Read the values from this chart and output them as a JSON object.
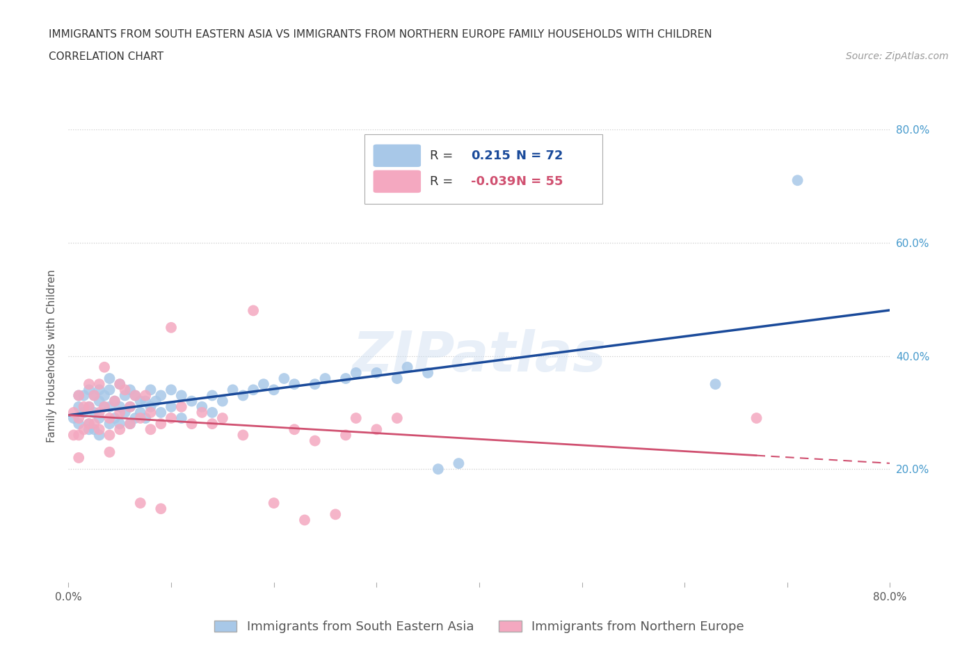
{
  "title_line1": "IMMIGRANTS FROM SOUTH EASTERN ASIA VS IMMIGRANTS FROM NORTHERN EUROPE FAMILY HOUSEHOLDS WITH CHILDREN",
  "title_line2": "CORRELATION CHART",
  "source": "Source: ZipAtlas.com",
  "ylabel": "Family Households with Children",
  "xlim": [
    0.0,
    0.8
  ],
  "ylim": [
    0.0,
    0.8
  ],
  "watermark": "ZIPatlas",
  "series1_name": "Immigrants from South Eastern Asia",
  "series2_name": "Immigrants from Northern Europe",
  "series1_color": "#a8c8e8",
  "series2_color": "#f4a8c0",
  "series1_line_color": "#1a4a9a",
  "series2_line_color": "#d05070",
  "series1_R": 0.215,
  "series1_N": 72,
  "series2_R": -0.039,
  "series2_N": 55,
  "series1_x": [
    0.005,
    0.01,
    0.01,
    0.01,
    0.015,
    0.015,
    0.02,
    0.02,
    0.02,
    0.02,
    0.025,
    0.025,
    0.025,
    0.03,
    0.03,
    0.03,
    0.03,
    0.035,
    0.035,
    0.04,
    0.04,
    0.04,
    0.04,
    0.045,
    0.045,
    0.05,
    0.05,
    0.05,
    0.055,
    0.055,
    0.06,
    0.06,
    0.06,
    0.065,
    0.065,
    0.07,
    0.07,
    0.075,
    0.075,
    0.08,
    0.08,
    0.085,
    0.09,
    0.09,
    0.1,
    0.1,
    0.11,
    0.11,
    0.12,
    0.13,
    0.14,
    0.14,
    0.15,
    0.16,
    0.17,
    0.18,
    0.19,
    0.2,
    0.21,
    0.22,
    0.24,
    0.25,
    0.27,
    0.28,
    0.3,
    0.32,
    0.33,
    0.35,
    0.36,
    0.38,
    0.63,
    0.71
  ],
  "series1_y": [
    0.29,
    0.31,
    0.33,
    0.28,
    0.3,
    0.33,
    0.28,
    0.31,
    0.34,
    0.27,
    0.3,
    0.33,
    0.27,
    0.29,
    0.32,
    0.34,
    0.26,
    0.31,
    0.33,
    0.28,
    0.31,
    0.34,
    0.36,
    0.29,
    0.32,
    0.28,
    0.31,
    0.35,
    0.3,
    0.33,
    0.28,
    0.31,
    0.34,
    0.29,
    0.33,
    0.3,
    0.32,
    0.29,
    0.32,
    0.31,
    0.34,
    0.32,
    0.3,
    0.33,
    0.31,
    0.34,
    0.29,
    0.33,
    0.32,
    0.31,
    0.3,
    0.33,
    0.32,
    0.34,
    0.33,
    0.34,
    0.35,
    0.34,
    0.36,
    0.35,
    0.35,
    0.36,
    0.36,
    0.37,
    0.37,
    0.36,
    0.38,
    0.37,
    0.2,
    0.21,
    0.35,
    0.71
  ],
  "series2_x": [
    0.005,
    0.005,
    0.01,
    0.01,
    0.01,
    0.01,
    0.015,
    0.015,
    0.02,
    0.02,
    0.02,
    0.025,
    0.025,
    0.03,
    0.03,
    0.03,
    0.035,
    0.035,
    0.04,
    0.04,
    0.04,
    0.045,
    0.05,
    0.05,
    0.05,
    0.055,
    0.06,
    0.06,
    0.065,
    0.07,
    0.07,
    0.075,
    0.08,
    0.08,
    0.09,
    0.09,
    0.1,
    0.1,
    0.11,
    0.12,
    0.13,
    0.14,
    0.15,
    0.17,
    0.18,
    0.2,
    0.22,
    0.23,
    0.24,
    0.26,
    0.27,
    0.28,
    0.3,
    0.32,
    0.67
  ],
  "series2_y": [
    0.3,
    0.26,
    0.29,
    0.26,
    0.22,
    0.33,
    0.31,
    0.27,
    0.35,
    0.31,
    0.28,
    0.33,
    0.28,
    0.35,
    0.3,
    0.27,
    0.38,
    0.31,
    0.29,
    0.26,
    0.23,
    0.32,
    0.35,
    0.3,
    0.27,
    0.34,
    0.31,
    0.28,
    0.33,
    0.29,
    0.14,
    0.33,
    0.3,
    0.27,
    0.28,
    0.13,
    0.45,
    0.29,
    0.31,
    0.28,
    0.3,
    0.28,
    0.29,
    0.26,
    0.48,
    0.14,
    0.27,
    0.11,
    0.25,
    0.12,
    0.26,
    0.29,
    0.27,
    0.29,
    0.29
  ],
  "grid_color": "#cccccc",
  "background_color": "#ffffff",
  "title_fontsize": 11,
  "subtitle_fontsize": 11,
  "axis_label_fontsize": 11,
  "tick_fontsize": 11,
  "legend_fontsize": 13,
  "source_fontsize": 10,
  "right_label_color": "#4499cc"
}
